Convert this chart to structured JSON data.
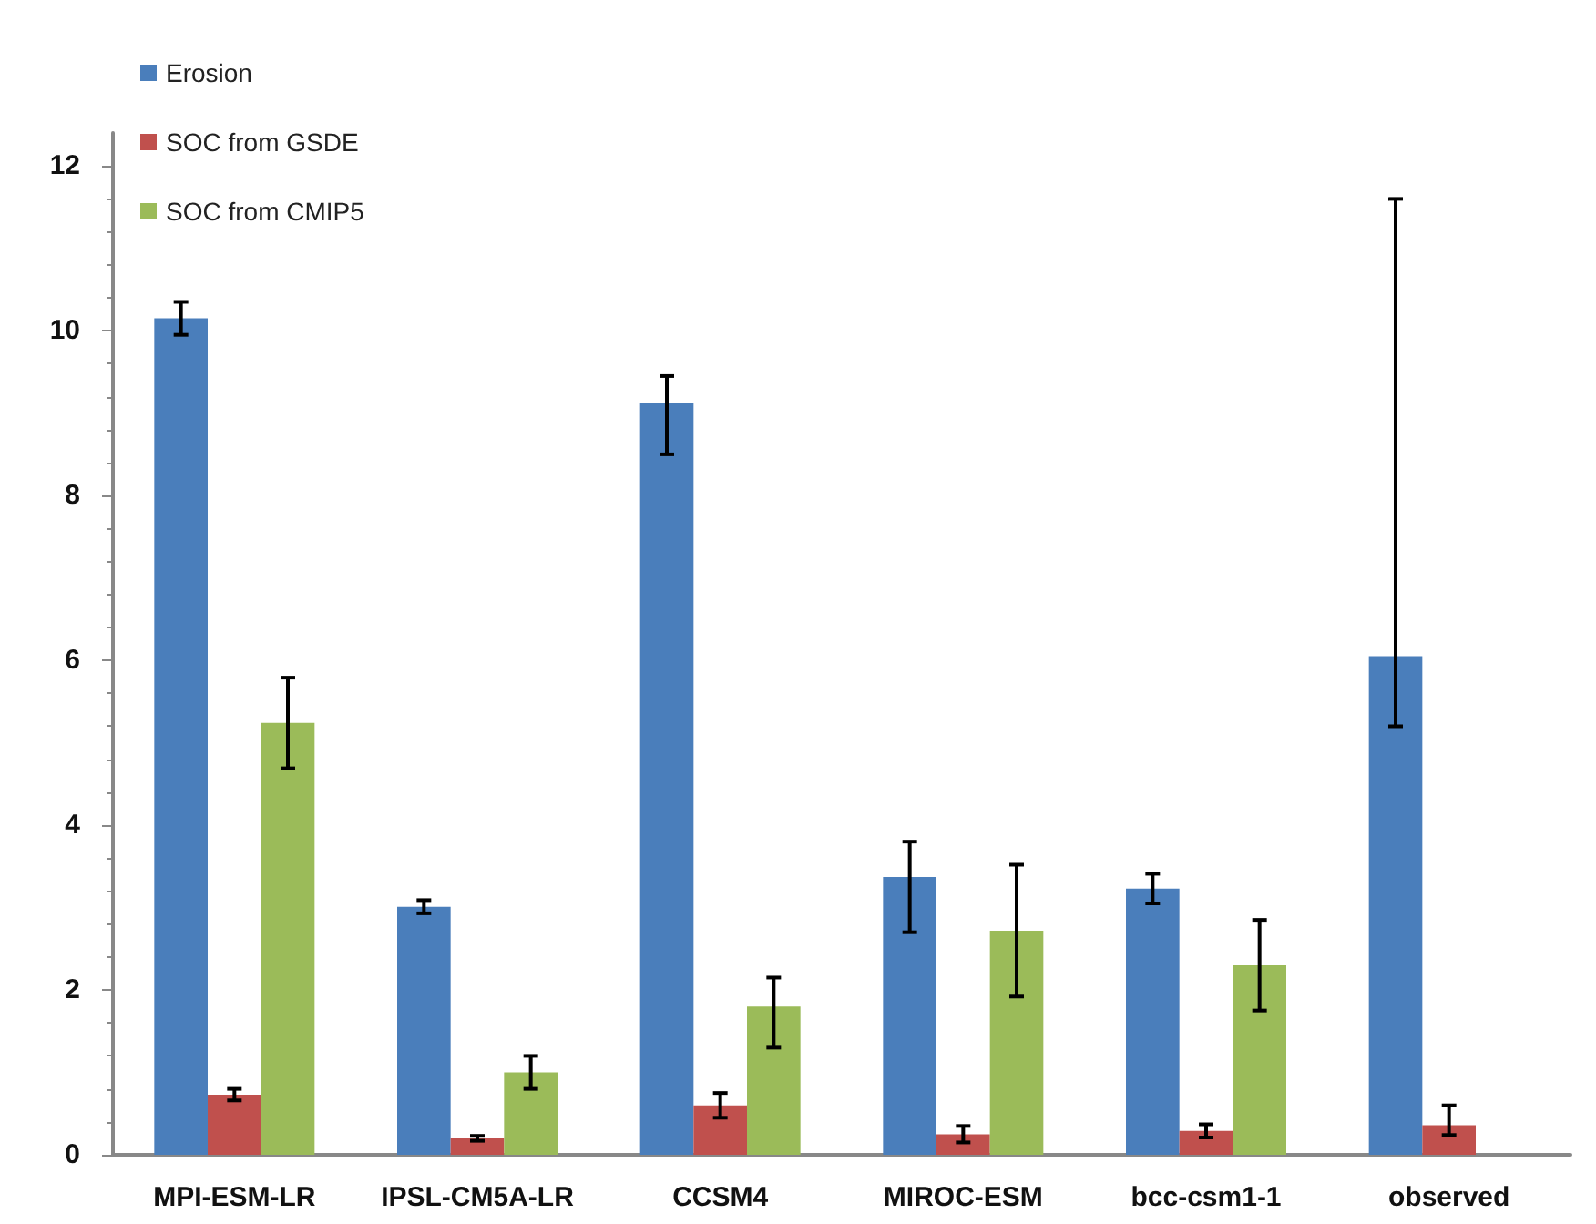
{
  "chart_data": {
    "type": "bar",
    "categories": [
      "MPI-ESM-LR",
      "IPSL-CM5A-LR",
      "CCSM4",
      "MIROC-ESM",
      "bcc-csm1-1",
      "observed"
    ],
    "series": [
      {
        "name": "Erosion",
        "color": "#4a7ebb",
        "values": [
          10.15,
          3.01,
          9.13,
          3.37,
          3.23,
          6.05
        ],
        "errors": [
          0.2,
          0.08,
          [
            8.5,
            9.45
          ],
          [
            2.7,
            3.8
          ],
          0.18,
          [
            5.2,
            11.6
          ]
        ]
      },
      {
        "name": "SOC from GSDE",
        "color": "#c0504d",
        "values": [
          0.73,
          0.2,
          0.6,
          0.25,
          0.29,
          0.36
        ],
        "errors": [
          0.07,
          0.03,
          0.15,
          0.1,
          0.08,
          [
            0.24,
            0.6
          ]
        ]
      },
      {
        "name": "SOC from CMIP5",
        "color": "#9bbb59",
        "values": [
          5.24,
          1.0,
          1.8,
          2.72,
          2.3,
          null
        ],
        "errors": [
          0.55,
          0.2,
          [
            1.3,
            2.15
          ],
          0.8,
          0.55,
          null
        ]
      }
    ],
    "ylim": [
      0,
      12.4
    ],
    "yticks": [
      0,
      2,
      4,
      6,
      8,
      10,
      12
    ],
    "grid": false,
    "legend": "top left"
  }
}
